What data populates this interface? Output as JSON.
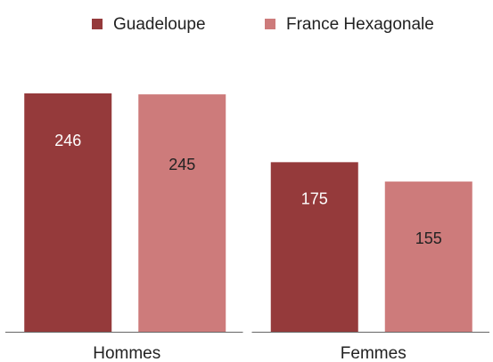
{
  "chart_data": {
    "type": "bar",
    "categories": [
      "Hommes",
      "Femmes"
    ],
    "series": [
      {
        "name": "Guadeloupe",
        "color": "#953a3b",
        "values": [
          246,
          175
        ]
      },
      {
        "name": "France Hexagonale",
        "color": "#cd7b7b",
        "values": [
          245,
          155
        ]
      }
    ],
    "legend": "top"
  }
}
